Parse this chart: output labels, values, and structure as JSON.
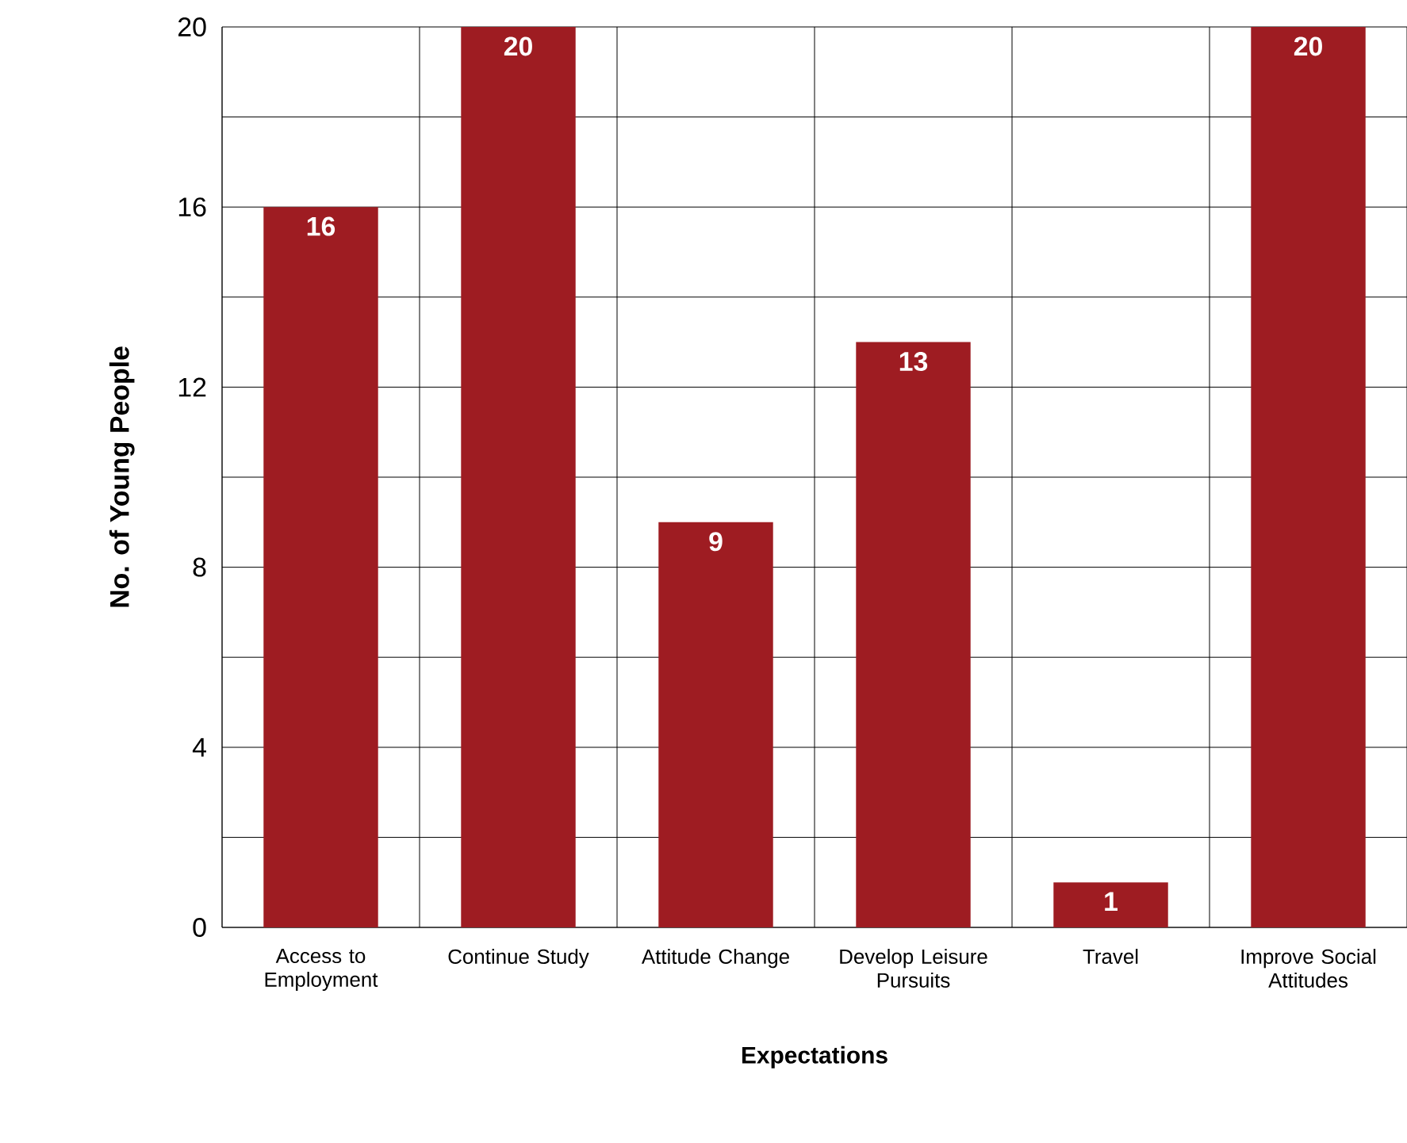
{
  "chart_data": {
    "type": "bar",
    "xlabel": "Expectations",
    "ylabel": "No. of Young People",
    "categories": [
      "Access to Employment",
      "Continue Study",
      "Attitude Change",
      "Develop Leisure Pursuits",
      "Travel",
      "Improve Social Attitudes"
    ],
    "values": [
      16,
      20,
      9,
      13,
      1,
      20
    ],
    "color": "#9e1c22",
    "ylim": [
      0,
      20
    ],
    "yticks": [
      0,
      {
        "value": 2,
        "label": null
      },
      4,
      {
        "value": 6,
        "label": null
      },
      8,
      {
        "value": 10,
        "label": null
      },
      12,
      {
        "value": 14,
        "label": null
      },
      16,
      {
        "value": 18,
        "label": null
      },
      20
    ],
    "grid": true,
    "data_labels": true
  }
}
